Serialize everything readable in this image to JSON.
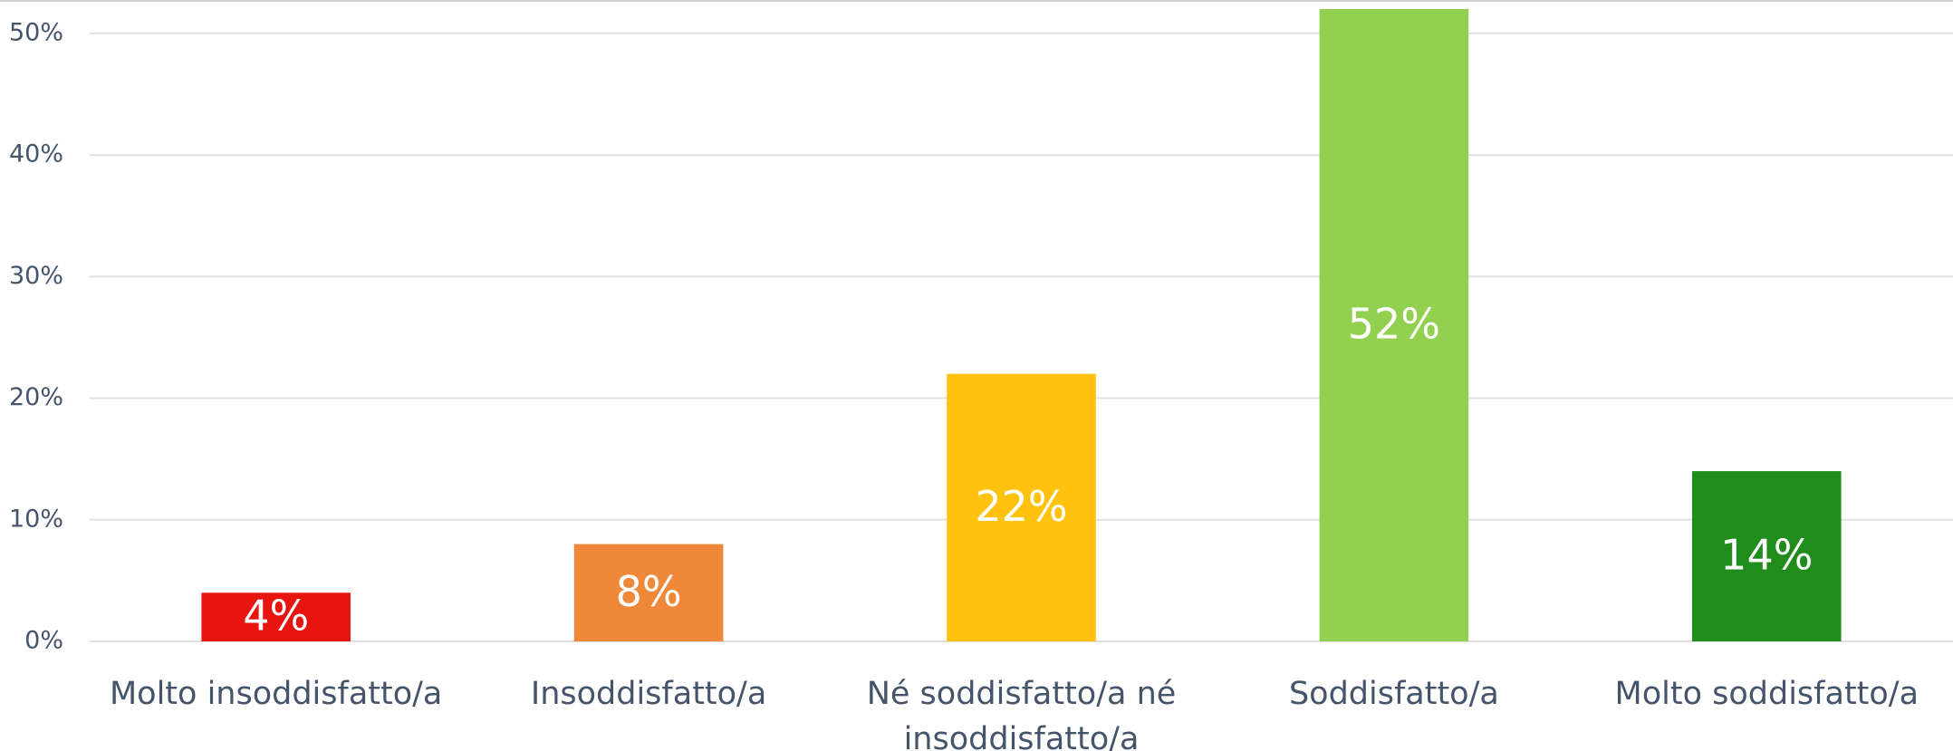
{
  "chart_data": {
    "type": "bar",
    "categories": [
      "Molto insoddisfatto/a",
      "Insoddisfatto/a",
      "Né soddisfatto/a né insoddisfatto/a",
      "Soddisfatto/a",
      "Molto soddisfatto/a"
    ],
    "values": [
      4,
      8,
      22,
      52,
      14
    ],
    "value_labels": [
      "4%",
      "8%",
      "22%",
      "52%",
      "14%"
    ],
    "colors": [
      "#e8140f",
      "#ef8838",
      "#ffc20e",
      "#92d050",
      "#1f8c1c"
    ],
    "ylim": [
      0,
      52
    ],
    "yticks": [
      {
        "value": 0,
        "label": "0%"
      },
      {
        "value": 10,
        "label": "10%"
      },
      {
        "value": 20,
        "label": "20%"
      },
      {
        "value": 30,
        "label": "30%"
      },
      {
        "value": 40,
        "label": "40%"
      },
      {
        "value": 50,
        "label": "50%"
      }
    ],
    "grid": true
  }
}
